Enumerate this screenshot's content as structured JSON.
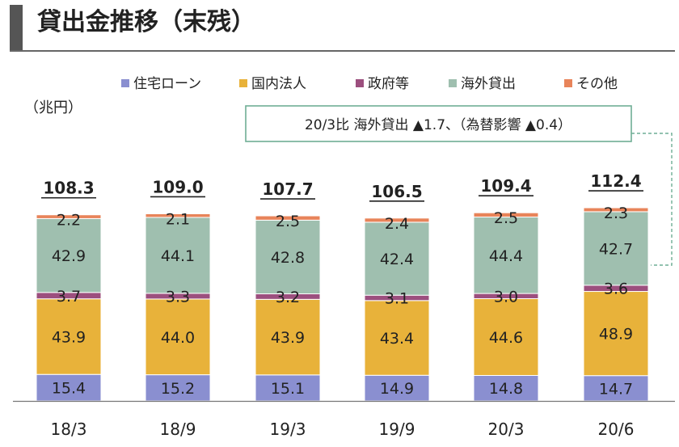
{
  "page": {
    "title": "貸出金推移（末残）"
  },
  "chart_data": {
    "type": "bar",
    "stacked": true,
    "unit_label": "（兆円）",
    "categories": [
      "18/3",
      "18/9",
      "19/3",
      "19/9",
      "20/3",
      "20/6"
    ],
    "totals": [
      "108.3",
      "109.0",
      "107.7",
      "106.5",
      "109.4",
      "112.4"
    ],
    "series": [
      {
        "name": "住宅ローン",
        "color": "#8a8fd0",
        "values": [
          15.4,
          15.2,
          15.1,
          14.9,
          14.8,
          14.7
        ]
      },
      {
        "name": "国内法人",
        "color": "#e8b23a",
        "values": [
          43.9,
          44.0,
          43.9,
          43.4,
          44.6,
          48.9
        ]
      },
      {
        "name": "政府等",
        "color": "#9c4f7e",
        "values": [
          3.7,
          3.3,
          3.2,
          3.1,
          3.0,
          3.6
        ]
      },
      {
        "name": "海外貸出",
        "color": "#9fbfaf",
        "values": [
          42.9,
          44.1,
          42.8,
          42.4,
          44.4,
          42.7
        ]
      },
      {
        "name": "その他",
        "color": "#e8845a",
        "values": [
          2.2,
          2.1,
          2.5,
          2.4,
          2.5,
          2.3
        ]
      }
    ],
    "value_labels": [
      [
        "15.4",
        "15.2",
        "15.1",
        "14.9",
        "14.8",
        "14.7"
      ],
      [
        "43.9",
        "44.0",
        "43.9",
        "43.4",
        "44.6",
        "48.9"
      ],
      [
        "3.7",
        "3.3",
        "3.2",
        "3.1",
        "3.0",
        "3.6"
      ],
      [
        "42.9",
        "44.1",
        "42.8",
        "42.4",
        "44.4",
        "42.7"
      ],
      [
        "2.2",
        "2.1",
        "2.5",
        "2.4",
        "2.5",
        "2.3"
      ]
    ],
    "annotation": "20/3比 海外貸出 ▲1.7、（為替影響 ▲0.4）",
    "legend_position": "top",
    "grid": false
  }
}
